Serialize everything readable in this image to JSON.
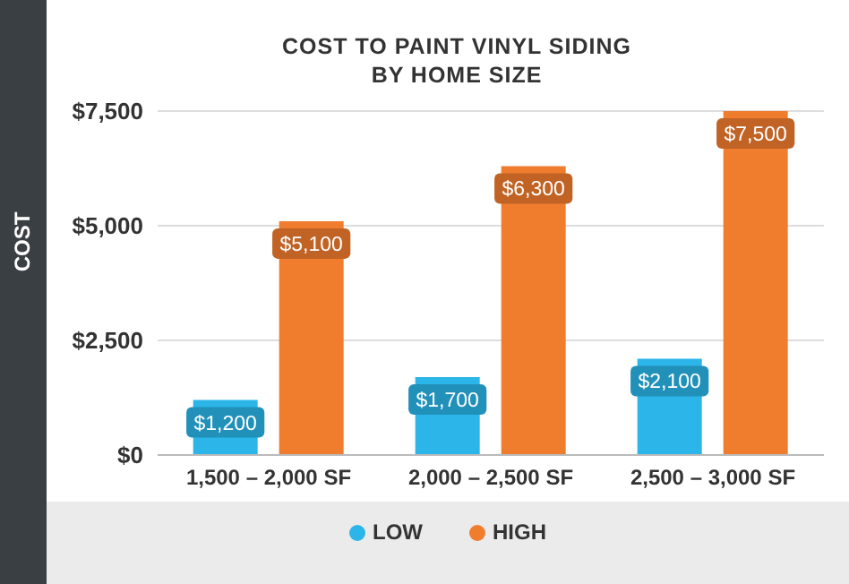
{
  "chart_data": {
    "type": "bar",
    "title": "COST TO PAINT VINYL SIDING BY HOME SIZE",
    "ylabel": "COST",
    "categories": [
      "1,500 – 2,000 SF",
      "2,000 – 2,500 SF",
      "2,500 – 3,000 SF"
    ],
    "series": [
      {
        "name": "LOW",
        "color": "#2bb5e8",
        "values": [
          1200,
          1700,
          2100
        ],
        "value_labels": [
          "$1,200",
          "$1,700",
          "$2,100"
        ]
      },
      {
        "name": "HIGH",
        "color": "#f07c2e",
        "values": [
          5100,
          6300,
          7500
        ],
        "value_labels": [
          "$5,100",
          "$6,300",
          "$7,500"
        ]
      }
    ],
    "ylim": [
      0,
      7500
    ],
    "yticks": [
      {
        "value": 0,
        "label": "$0"
      },
      {
        "value": 2500,
        "label": "$2,500"
      },
      {
        "value": 5000,
        "label": "$5,000"
      },
      {
        "value": 7500,
        "label": "$7,500"
      }
    ],
    "grid": "y",
    "legend": "bottom",
    "marker": "circle"
  }
}
